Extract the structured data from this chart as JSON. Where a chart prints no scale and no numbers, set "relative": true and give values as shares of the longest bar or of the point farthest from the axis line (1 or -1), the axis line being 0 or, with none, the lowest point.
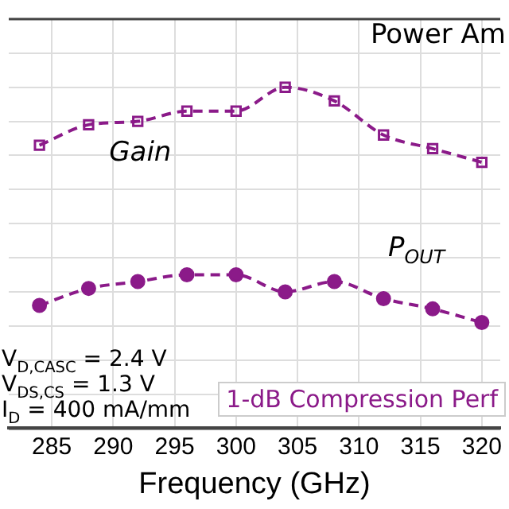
{
  "chart_data": {
    "type": "line",
    "relative": true,
    "xlabel": "Frequency (GHz)",
    "x": [
      284,
      288,
      292,
      296,
      300,
      304,
      308,
      312,
      316,
      320
    ],
    "xlim": [
      281.5,
      321.5
    ],
    "xticks": [
      285,
      290,
      295,
      300,
      305,
      310,
      315,
      320
    ],
    "grid": true,
    "legend": false,
    "line_style": "dashed",
    "series": [
      {
        "name": "Gain",
        "color": "#8b1a89",
        "marker": "square",
        "values": [
          0.83,
          0.89,
          0.9,
          0.93,
          0.93,
          1,
          0.96,
          0.86,
          0.82,
          0.78
        ]
      },
      {
        "name": "P$_{OUT}$",
        "color": "#8b1a89",
        "marker": "circle",
        "values": [
          0.36,
          0.41,
          0.43,
          0.45,
          0.45,
          0.4,
          0.43,
          0.38,
          0.35,
          0.31
        ]
      }
    ],
    "annotations": [
      "Power Am",
      "V$_{D,CASC}$ = 2.4 V",
      "V$_{DS,CS}$ = 1.3 V",
      "I$_{D}$ = 400 mA/mm",
      "1-dB Compression Perf"
    ]
  }
}
